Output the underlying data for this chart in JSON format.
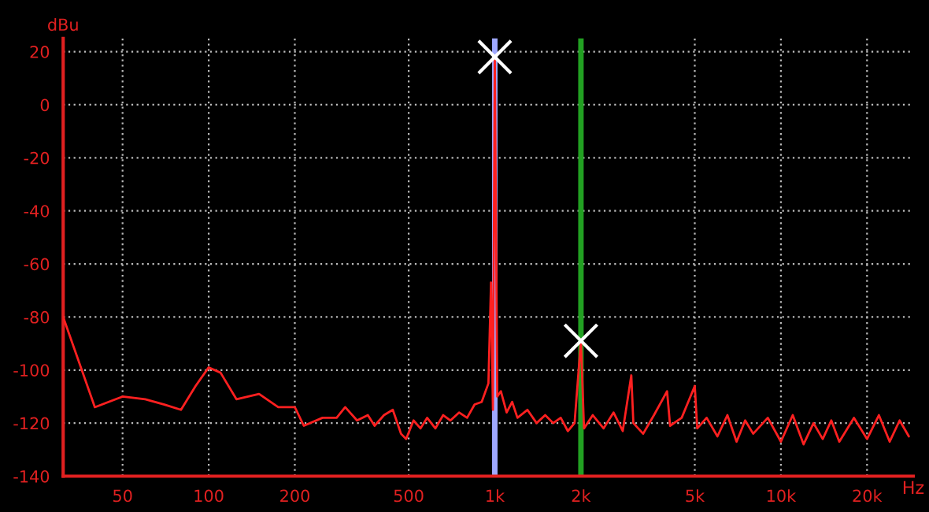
{
  "chart_data": {
    "type": "line",
    "xlabel": "Hz",
    "ylabel": "dBu",
    "log": "x",
    "grid": true,
    "xlim": [
      31,
      29000
    ],
    "ylim": [
      -140,
      25
    ],
    "xticks": [
      50,
      100,
      200,
      500,
      {
        "value": 1000,
        "label": "1k"
      },
      {
        "value": 2000,
        "label": "2k"
      },
      {
        "value": 5000,
        "label": "5k"
      },
      {
        "value": 10000,
        "label": "10k"
      },
      {
        "value": 20000,
        "label": "20k"
      }
    ],
    "yticks": [
      20,
      0,
      -20,
      -40,
      -60,
      -80,
      -100,
      -120,
      -140
    ],
    "ref_lines": [
      {
        "axis": "x",
        "value": 1000,
        "label": null,
        "color": "#9fa8ff"
      },
      {
        "axis": "x",
        "value": 2000,
        "label": null,
        "color": "#22a022"
      }
    ],
    "series": [
      {
        "color": "#ff2020",
        "x": [
          31,
          40,
          50,
          60,
          70,
          80,
          90,
          100,
          110,
          125,
          150,
          175,
          200,
          215,
          250,
          280,
          300,
          330,
          360,
          380,
          410,
          440,
          470,
          490,
          520,
          550,
          580,
          620,
          660,
          700,
          750,
          800,
          850,
          900,
          950,
          970,
          985,
          1000,
          1020,
          1050,
          1100,
          1150,
          1200,
          1300,
          1400,
          1500,
          1600,
          1700,
          1800,
          1900,
          2000,
          2050,
          2200,
          2400,
          2600,
          2800,
          3000,
          3050,
          3300,
          3600,
          4000,
          4100,
          4500,
          5000,
          5100,
          5500,
          6000,
          6500,
          7000,
          7500,
          8000,
          9000,
          10000,
          11000,
          12000,
          13000,
          14000,
          15000,
          16000,
          18000,
          20000,
          22000,
          24000,
          26000,
          28000
        ],
        "values": [
          -80,
          -114,
          -110,
          -111,
          -113,
          -115,
          -106,
          -99,
          -101,
          -111,
          -109,
          -114,
          -114,
          -121,
          -118,
          -118,
          -114,
          -119,
          -117,
          -121,
          -117,
          -115,
          -124,
          -126,
          -119,
          -122,
          -118,
          -122,
          -117,
          -119,
          -116,
          -118,
          -113,
          -112,
          -105,
          -67,
          -115,
          18,
          -110,
          -108,
          -116,
          -112,
          -118,
          -115,
          -120,
          -117,
          -120,
          -118,
          -123,
          -120,
          -89,
          -122,
          -117,
          -122,
          -116,
          -123,
          -102,
          -120,
          -124,
          -117,
          -108,
          -121,
          -118,
          -106,
          -122,
          -118,
          -125,
          -117,
          -127,
          -119,
          -124,
          -118,
          -127,
          -117,
          -128,
          -120,
          -126,
          -119,
          -127,
          -118,
          -126,
          -117,
          -127,
          -119,
          -125
        ]
      },
      {
        "type": "scatter",
        "color": "#ffffff",
        "marker": "cross",
        "x": [
          1000,
          2000
        ],
        "values": [
          18,
          -89
        ]
      }
    ]
  }
}
